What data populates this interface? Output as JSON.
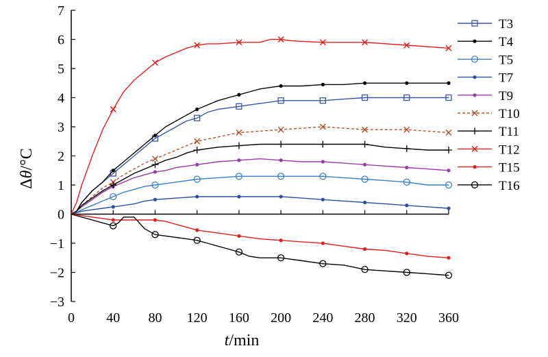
{
  "chart_data": {
    "type": "line",
    "xlabel_italic": "t",
    "xlabel_rest": "/min",
    "ylabel_prefix": "Δ",
    "ylabel_italic": "θ",
    "ylabel_rest": "/°C",
    "xlim": [
      0,
      360
    ],
    "ylim": [
      -3,
      7
    ],
    "xticks": [
      0,
      40,
      80,
      120,
      160,
      200,
      240,
      280,
      320,
      360
    ],
    "yticks": [
      -3,
      -2,
      -1,
      0,
      1,
      2,
      3,
      4,
      5,
      6,
      7
    ],
    "grid": false,
    "legend_position": "right",
    "series": [
      {
        "name": "T3",
        "color": "#3a55a5",
        "marker": "square",
        "dash": "solid",
        "x": [
          0,
          5,
          10,
          20,
          30,
          40,
          50,
          60,
          70,
          80,
          90,
          100,
          110,
          120,
          130,
          140,
          150,
          160,
          170,
          180,
          190,
          200,
          220,
          240,
          260,
          280,
          300,
          320,
          340,
          360
        ],
        "y": [
          0,
          0.1,
          0.4,
          0.8,
          1.1,
          1.4,
          1.7,
          2.0,
          2.3,
          2.6,
          2.8,
          3.0,
          3.2,
          3.3,
          3.5,
          3.6,
          3.65,
          3.7,
          3.75,
          3.8,
          3.85,
          3.9,
          3.9,
          3.9,
          3.95,
          4.0,
          4.0,
          4.0,
          4.0,
          4.0
        ]
      },
      {
        "name": "T4",
        "color": "#000000",
        "marker": "dot",
        "dash": "solid",
        "x": [
          0,
          5,
          10,
          20,
          30,
          40,
          50,
          60,
          70,
          80,
          90,
          100,
          110,
          120,
          130,
          140,
          150,
          160,
          170,
          180,
          190,
          200,
          220,
          240,
          260,
          280,
          300,
          320,
          340,
          360
        ],
        "y": [
          0,
          0.1,
          0.4,
          0.8,
          1.1,
          1.5,
          1.8,
          2.1,
          2.4,
          2.7,
          3.0,
          3.2,
          3.4,
          3.6,
          3.75,
          3.9,
          4.0,
          4.1,
          4.2,
          4.3,
          4.35,
          4.4,
          4.4,
          4.45,
          4.45,
          4.5,
          4.5,
          4.5,
          4.5,
          4.5
        ]
      },
      {
        "name": "T5",
        "color": "#3a7fc8",
        "marker": "circle",
        "dash": "solid",
        "x": [
          0,
          5,
          10,
          20,
          30,
          40,
          50,
          60,
          70,
          80,
          90,
          100,
          120,
          140,
          160,
          180,
          200,
          220,
          240,
          260,
          280,
          300,
          320,
          340,
          360
        ],
        "y": [
          0,
          0.05,
          0.15,
          0.3,
          0.45,
          0.6,
          0.75,
          0.85,
          0.95,
          1.0,
          1.05,
          1.1,
          1.2,
          1.25,
          1.3,
          1.3,
          1.3,
          1.3,
          1.3,
          1.25,
          1.2,
          1.15,
          1.1,
          1.0,
          1.0
        ]
      },
      {
        "name": "T7",
        "color": "#2d4fa0",
        "marker": "dot",
        "dash": "solid",
        "x": [
          0,
          5,
          10,
          20,
          30,
          40,
          50,
          60,
          70,
          80,
          100,
          120,
          140,
          160,
          180,
          200,
          220,
          240,
          260,
          280,
          300,
          320,
          340,
          360
        ],
        "y": [
          0,
          0.05,
          0.1,
          0.15,
          0.2,
          0.25,
          0.3,
          0.35,
          0.45,
          0.5,
          0.55,
          0.6,
          0.6,
          0.6,
          0.6,
          0.6,
          0.55,
          0.5,
          0.45,
          0.4,
          0.35,
          0.3,
          0.25,
          0.2
        ]
      },
      {
        "name": "T9",
        "color": "#9a3aa8",
        "marker": "dot",
        "dash": "solid",
        "x": [
          0,
          5,
          10,
          20,
          30,
          40,
          50,
          60,
          70,
          80,
          90,
          100,
          110,
          120,
          140,
          160,
          180,
          200,
          220,
          240,
          260,
          280,
          300,
          320,
          340,
          360
        ],
        "y": [
          0,
          0.1,
          0.25,
          0.5,
          0.75,
          0.95,
          1.1,
          1.25,
          1.35,
          1.45,
          1.5,
          1.6,
          1.65,
          1.7,
          1.8,
          1.85,
          1.9,
          1.85,
          1.8,
          1.8,
          1.75,
          1.7,
          1.65,
          1.6,
          1.55,
          1.5
        ]
      },
      {
        "name": "T10",
        "color": "#b5512b",
        "marker": "x",
        "dash": "dashed",
        "x": [
          0,
          5,
          10,
          20,
          30,
          40,
          50,
          60,
          70,
          80,
          90,
          100,
          110,
          120,
          140,
          160,
          180,
          200,
          220,
          240,
          260,
          280,
          300,
          320,
          340,
          360
        ],
        "y": [
          0,
          0.1,
          0.3,
          0.6,
          0.9,
          1.1,
          1.35,
          1.55,
          1.75,
          1.9,
          2.05,
          2.2,
          2.35,
          2.5,
          2.65,
          2.8,
          2.85,
          2.9,
          2.95,
          3.0,
          2.95,
          2.9,
          2.9,
          2.9,
          2.85,
          2.8
        ]
      },
      {
        "name": "T11",
        "color": "#000000",
        "marker": "plus",
        "dash": "solid",
        "x": [
          0,
          5,
          10,
          20,
          30,
          40,
          50,
          60,
          70,
          80,
          90,
          100,
          110,
          120,
          140,
          160,
          180,
          200,
          220,
          240,
          260,
          280,
          300,
          320,
          340,
          360
        ],
        "y": [
          0,
          0.1,
          0.3,
          0.55,
          0.8,
          1.0,
          1.2,
          1.4,
          1.55,
          1.7,
          1.85,
          1.95,
          2.1,
          2.2,
          2.3,
          2.35,
          2.4,
          2.4,
          2.4,
          2.4,
          2.4,
          2.4,
          2.3,
          2.25,
          2.2,
          2.2
        ]
      },
      {
        "name": "T12",
        "color": "#e02020",
        "marker": "x",
        "dash": "solid",
        "x": [
          0,
          5,
          10,
          15,
          20,
          30,
          40,
          50,
          60,
          70,
          80,
          90,
          100,
          110,
          120,
          130,
          140,
          160,
          180,
          190,
          200,
          210,
          240,
          280,
          320,
          360
        ],
        "y": [
          0,
          0.4,
          1.0,
          1.5,
          2.0,
          2.9,
          3.6,
          4.2,
          4.6,
          4.9,
          5.2,
          5.4,
          5.55,
          5.7,
          5.8,
          5.85,
          5.85,
          5.9,
          5.9,
          6.0,
          6.0,
          5.95,
          5.9,
          5.9,
          5.8,
          5.7
        ]
      },
      {
        "name": "T15",
        "color": "#e02020",
        "marker": "dot",
        "dash": "solid",
        "x": [
          0,
          10,
          20,
          30,
          40,
          50,
          60,
          70,
          80,
          90,
          100,
          110,
          120,
          140,
          160,
          180,
          200,
          220,
          240,
          260,
          280,
          300,
          320,
          340,
          360
        ],
        "y": [
          0,
          -0.05,
          -0.1,
          -0.15,
          -0.2,
          -0.2,
          -0.2,
          -0.2,
          -0.2,
          -0.25,
          -0.35,
          -0.45,
          -0.55,
          -0.65,
          -0.75,
          -0.85,
          -0.9,
          -0.95,
          -1.0,
          -1.1,
          -1.2,
          -1.25,
          -1.35,
          -1.45,
          -1.5
        ]
      },
      {
        "name": "T16",
        "color": "#000000",
        "marker": "open-circle",
        "dash": "solid",
        "x": [
          0,
          10,
          20,
          30,
          40,
          45,
          50,
          55,
          60,
          70,
          80,
          90,
          100,
          110,
          120,
          130,
          140,
          150,
          160,
          170,
          180,
          200,
          220,
          240,
          260,
          280,
          300,
          320,
          340,
          360
        ],
        "y": [
          0,
          -0.1,
          -0.2,
          -0.3,
          -0.4,
          -0.3,
          -0.1,
          -0.1,
          -0.1,
          -0.5,
          -0.7,
          -0.75,
          -0.8,
          -0.85,
          -0.9,
          -1.0,
          -1.1,
          -1.2,
          -1.3,
          -1.45,
          -1.5,
          -1.5,
          -1.6,
          -1.7,
          -1.75,
          -1.9,
          -1.95,
          -2.0,
          -2.05,
          -2.1
        ]
      }
    ]
  }
}
